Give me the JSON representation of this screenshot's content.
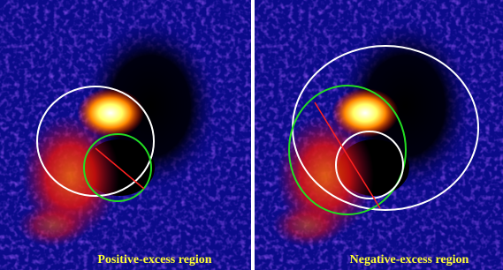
{
  "panels": [
    {
      "label": "Positive-excess region"
    },
    {
      "label": "Negative-excess region"
    }
  ]
}
